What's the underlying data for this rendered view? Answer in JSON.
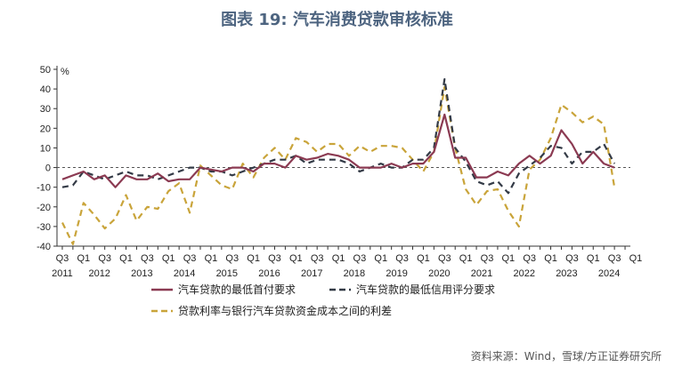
{
  "title": "图表 19: 汽车消费贷款审核标准",
  "source": "资料来源：Wind，雪球/方正证券研究所",
  "colors": {
    "min_down_payment": "#8b3a52",
    "min_credit_score": "#333a46",
    "rate_spread": "#c9a43a",
    "zero_line": "#555555"
  },
  "chart_data": {
    "type": "line",
    "ylabel": "%",
    "ylim": [
      -40,
      50
    ],
    "yticks": [
      -40,
      -30,
      -20,
      -10,
      0,
      10,
      20,
      30,
      40,
      50
    ],
    "grid": false,
    "legend_position": "bottom",
    "x": [
      "2011Q3",
      "2011Q4",
      "2012Q1",
      "2012Q2",
      "2012Q3",
      "2012Q4",
      "2013Q1",
      "2013Q2",
      "2013Q3",
      "2013Q4",
      "2014Q1",
      "2014Q2",
      "2014Q3",
      "2014Q4",
      "2015Q1",
      "2015Q2",
      "2015Q3",
      "2015Q4",
      "2016Q1",
      "2016Q2",
      "2016Q3",
      "2016Q4",
      "2017Q1",
      "2017Q2",
      "2017Q3",
      "2017Q4",
      "2018Q1",
      "2018Q2",
      "2018Q3",
      "2018Q4",
      "2019Q1",
      "2019Q2",
      "2019Q3",
      "2019Q4",
      "2020Q1",
      "2020Q2",
      "2020Q3",
      "2020Q4",
      "2021Q1",
      "2021Q2",
      "2021Q3",
      "2021Q4",
      "2022Q1",
      "2022Q2",
      "2022Q3",
      "2022Q4",
      "2023Q1",
      "2023Q2",
      "2023Q3",
      "2023Q4",
      "2024Q1",
      "2024Q2",
      "2024Q3"
    ],
    "x_tick_labels": [
      "Q3",
      "Q1",
      "Q3",
      "Q1",
      "Q3",
      "Q1",
      "Q3",
      "Q1",
      "Q3",
      "Q1",
      "Q3",
      "Q1",
      "Q3",
      "Q1",
      "Q3",
      "Q1",
      "Q3",
      "Q1",
      "Q3",
      "Q1",
      "Q3",
      "Q1",
      "Q3",
      "Q1",
      "Q3",
      "Q1",
      "Q3",
      "Q1"
    ],
    "year_labels": [
      "2011",
      "2012",
      "2013",
      "2014",
      "2015",
      "2016",
      "2017",
      "2018",
      "2019",
      "2020",
      "2021",
      "2022",
      "2023",
      "2024"
    ],
    "series": [
      {
        "name": "汽车贷款的最低首付要求",
        "style": "solid",
        "values": [
          -6,
          -4,
          -2,
          -6,
          -4,
          -10,
          -4,
          -6,
          -6,
          -3,
          -7,
          -6,
          -6,
          0,
          -1,
          -2,
          0,
          0,
          -2,
          2,
          2,
          0,
          6,
          4,
          5,
          7,
          6,
          4,
          0,
          0,
          0,
          2,
          0,
          2,
          2,
          8,
          27,
          5,
          5,
          -5,
          -5,
          -2,
          -4,
          2,
          6,
          2,
          6,
          19,
          12,
          2,
          8,
          2,
          0
        ]
      },
      {
        "name": "汽车贷款的最低信用评分要求",
        "style": "dashed",
        "values": [
          -10,
          -9,
          -2,
          -4,
          -6,
          -4,
          -2,
          -4,
          -4,
          -6,
          -4,
          -2,
          0,
          0,
          -2,
          -2,
          -4,
          -2,
          0,
          2,
          4,
          4,
          6,
          2,
          4,
          4,
          4,
          2,
          -2,
          0,
          2,
          0,
          0,
          4,
          4,
          10,
          45,
          10,
          3,
          -7,
          -9,
          -7,
          -13,
          -3,
          1,
          5,
          11,
          10,
          2,
          8,
          8,
          12,
          2
        ]
      },
      {
        "name": "贷款利率与银行汽车贷款资金成本之间的利差",
        "style": "dashed",
        "values": [
          -28,
          -39,
          -18,
          -24,
          -31,
          -26,
          -14,
          -27,
          -20,
          -21,
          -12,
          -8,
          -23,
          1,
          -4,
          -9,
          -11,
          2,
          -5,
          5,
          10,
          4,
          15,
          13,
          8,
          12,
          12,
          6,
          11,
          8,
          11,
          11,
          10,
          4,
          -2,
          8,
          41,
          10,
          -11,
          -19,
          -12,
          -11,
          -22,
          -30,
          -1,
          4,
          15,
          32,
          28,
          23,
          26,
          22,
          -10
        ]
      }
    ]
  }
}
